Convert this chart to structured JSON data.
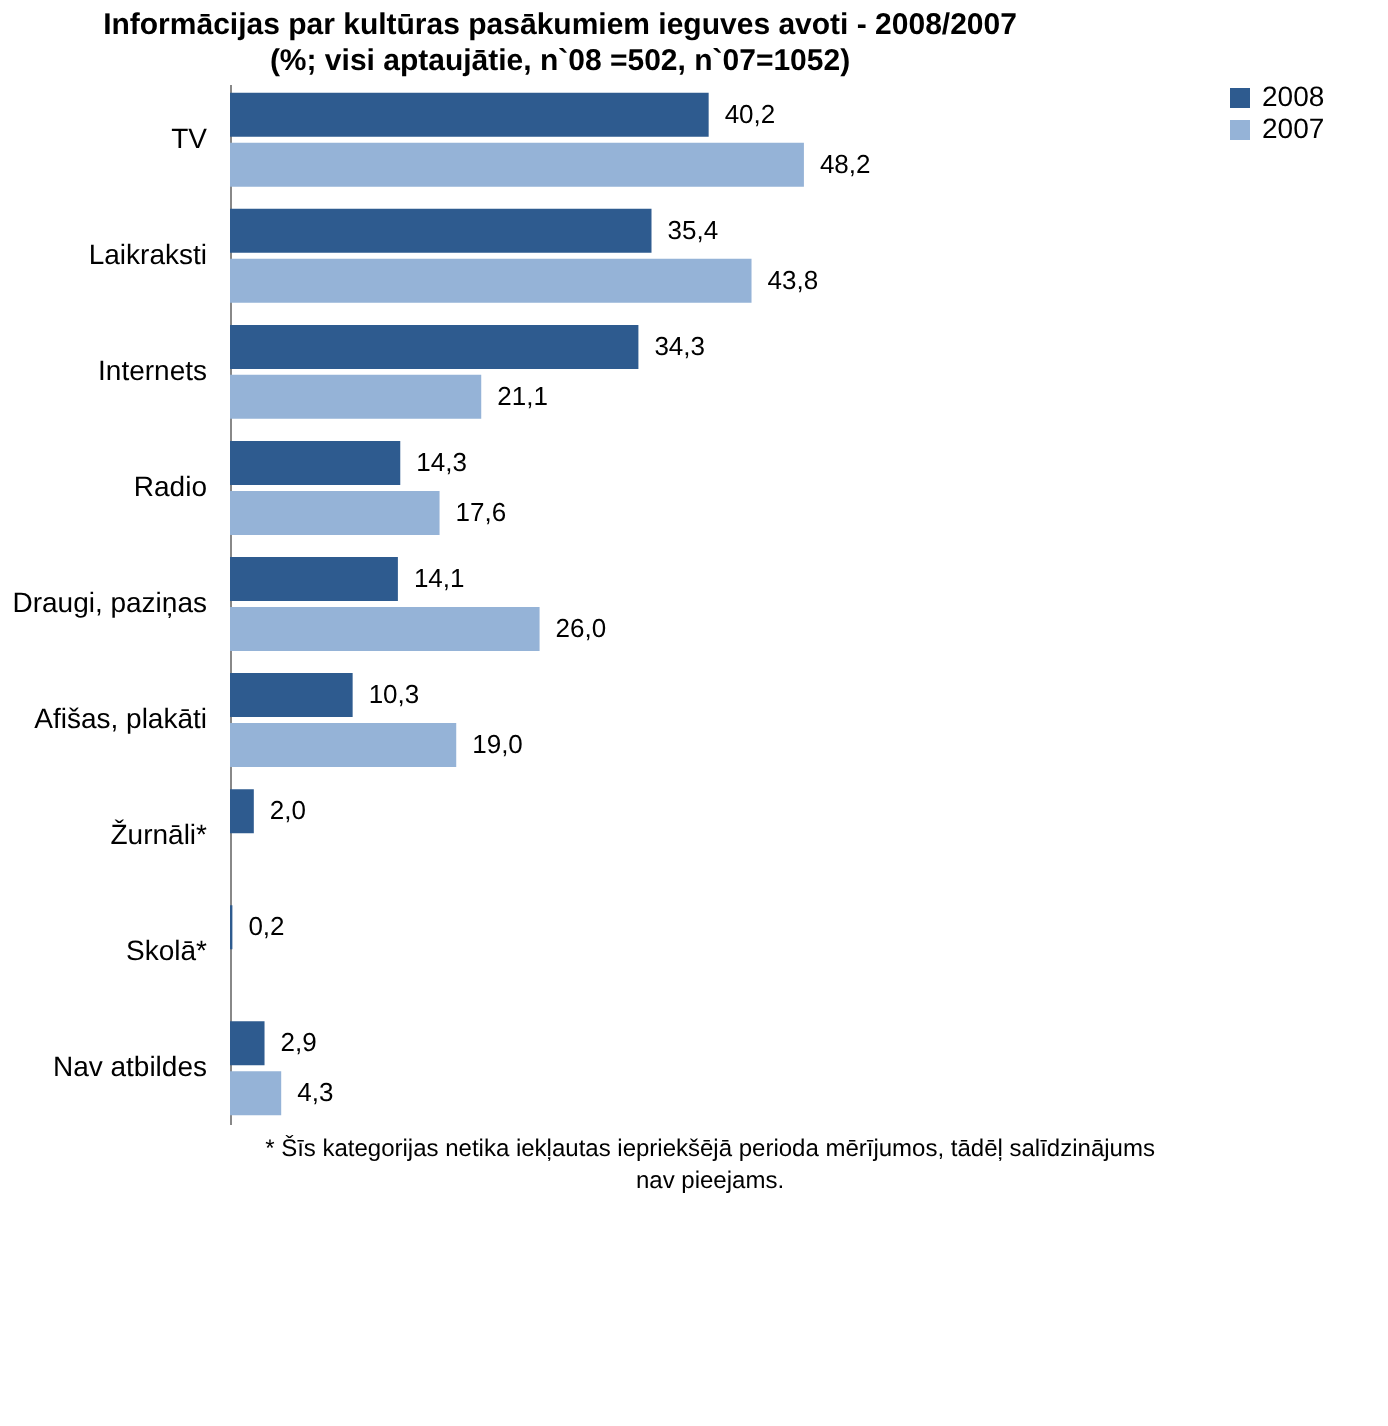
{
  "chart_data": {
    "type": "bar",
    "orientation": "horizontal",
    "title": "Informācijas par kultūras pasākumiem ieguves avoti - 2008/2007",
    "subtitle": "(%; visi aptaujātie, n`08 =502, n`07=1052)",
    "categories": [
      "TV",
      "Laikraksti",
      "Internets",
      "Radio",
      "Draugi, paziņas",
      "Afišas, plakāti",
      "Žurnāli*",
      "Skolā*",
      "Nav atbildes"
    ],
    "series": [
      {
        "name": "2008",
        "color": "#2e5b8f",
        "values": [
          40.2,
          35.4,
          34.3,
          14.3,
          14.1,
          10.3,
          2.0,
          0.2,
          2.9
        ],
        "value_labels": [
          "40,2",
          "35,4",
          "34,3",
          "14,3",
          "14,1",
          "10,3",
          "2,0",
          "0,2",
          "2,9"
        ]
      },
      {
        "name": "2007",
        "color": "#95b3d7",
        "values": [
          48.2,
          43.8,
          21.1,
          17.6,
          26.0,
          19.0,
          null,
          null,
          4.3
        ],
        "value_labels": [
          "48,2",
          "43,8",
          "21,1",
          "17,6",
          "26,0",
          "19,0",
          null,
          null,
          "4,3"
        ]
      }
    ],
    "legend": "right",
    "annotations": [
      "* Šīs kategorijas netika iekļautas iepriekšējā perioda mērījumos, tādēļ salīdzinājums nav pieejams."
    ]
  }
}
